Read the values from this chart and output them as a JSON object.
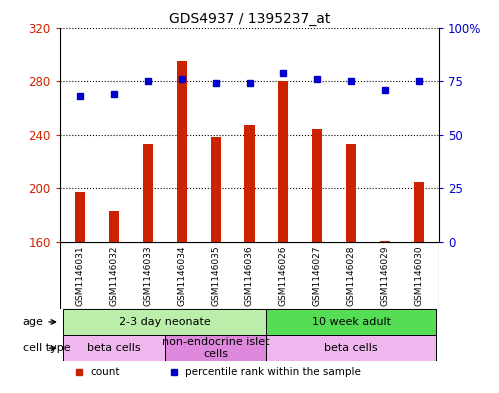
{
  "title": "GDS4937 / 1395237_at",
  "samples": [
    "GSM1146031",
    "GSM1146032",
    "GSM1146033",
    "GSM1146034",
    "GSM1146035",
    "GSM1146036",
    "GSM1146026",
    "GSM1146027",
    "GSM1146028",
    "GSM1146029",
    "GSM1146030"
  ],
  "counts": [
    197,
    183,
    233,
    295,
    238,
    247,
    280,
    244,
    233,
    161,
    205
  ],
  "percentile_ranks": [
    68,
    69,
    75,
    76,
    74,
    74,
    79,
    76,
    75,
    71,
    75
  ],
  "ylim_left": [
    160,
    320
  ],
  "ylim_right": [
    0,
    100
  ],
  "yticks_left": [
    160,
    200,
    240,
    280,
    320
  ],
  "yticks_right": [
    0,
    25,
    50,
    75,
    100
  ],
  "bar_color": "#cc2200",
  "dot_color": "#0000cc",
  "bg_color": "#ffffff",
  "grid_color": "#555555",
  "label_bg_color": "#cccccc",
  "age_groups": [
    {
      "label": "2-3 day neonate",
      "start": 0,
      "end": 6,
      "color": "#bbeeaa"
    },
    {
      "label": "10 week adult",
      "start": 6,
      "end": 11,
      "color": "#55dd55"
    }
  ],
  "cell_type_groups": [
    {
      "label": "beta cells",
      "start": 0,
      "end": 3,
      "color": "#eeb8ee"
    },
    {
      "label": "non-endocrine islet\ncells",
      "start": 3,
      "end": 6,
      "color": "#dd88dd"
    },
    {
      "label": "beta cells",
      "start": 6,
      "end": 11,
      "color": "#eeb8ee"
    }
  ],
  "legend_items": [
    {
      "label": "count",
      "color": "#cc2200"
    },
    {
      "label": "percentile rank within the sample",
      "color": "#0000cc"
    }
  ],
  "bar_width": 0.3
}
